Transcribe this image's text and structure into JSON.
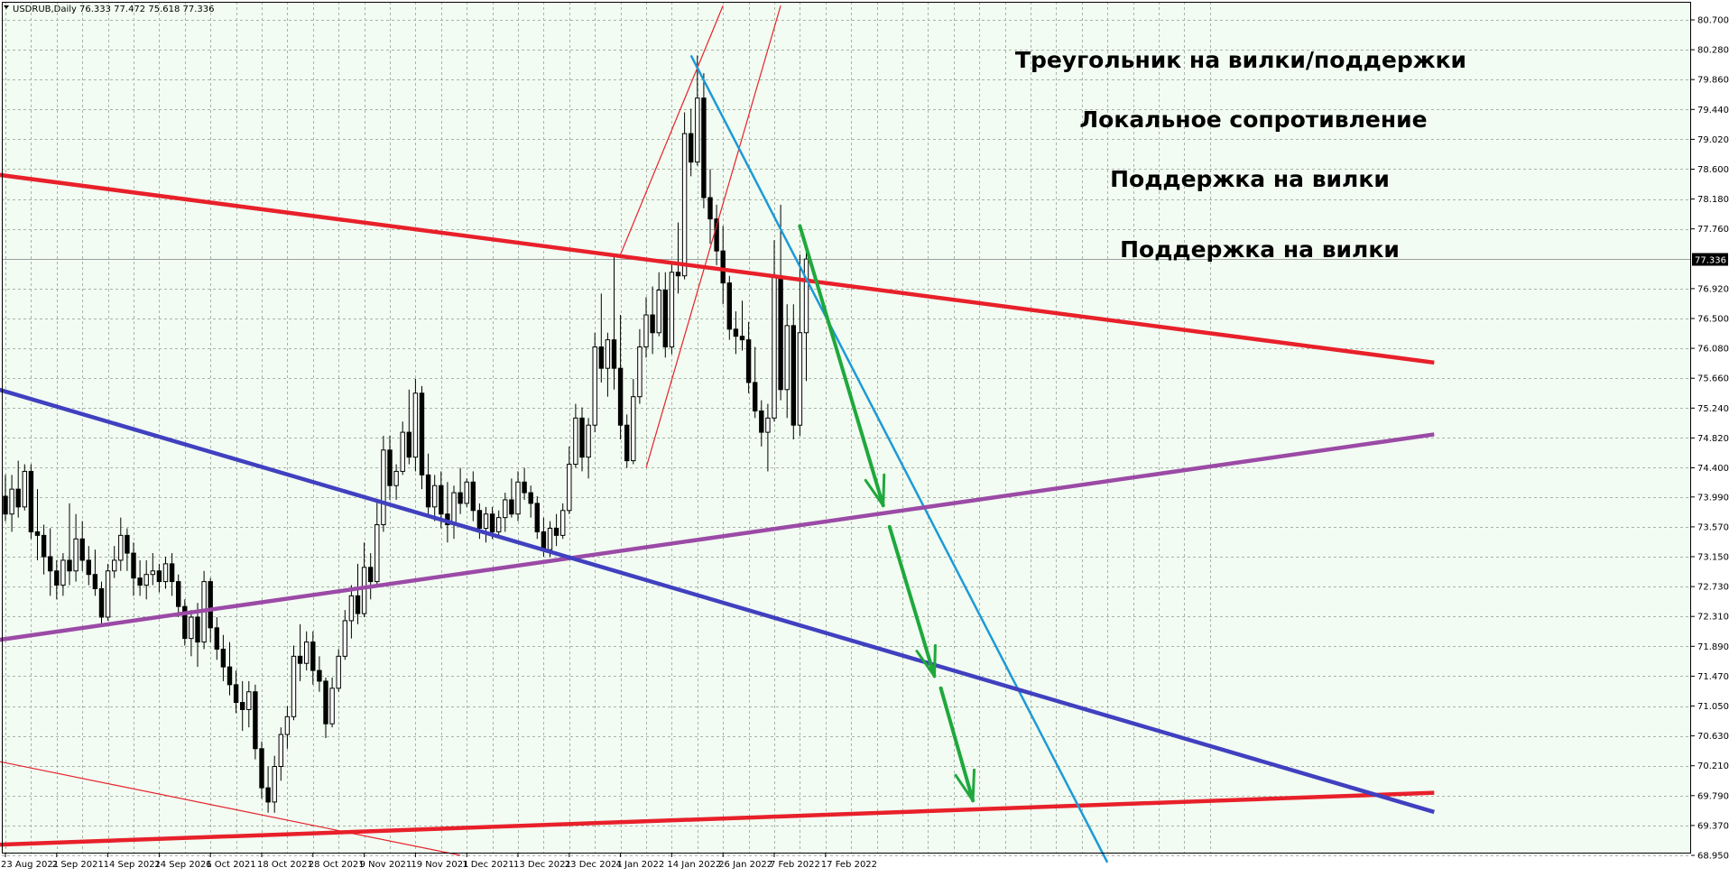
{
  "header": {
    "symbol_label": "USDRUB,Daily",
    "ohlc_text": "76.333 77.472 75.618 77.336"
  },
  "colors": {
    "background": "#f2fcf2",
    "grid": "#a8b4a8",
    "candle_up": "#ffffff",
    "candle_down": "#000000",
    "candle_outline": "#000000",
    "red": "#e8202a",
    "light_blue": "#1c9ad6",
    "purple": "#9b4aa6",
    "blue": "#4040c0",
    "green": "#1fa83c",
    "current_price_label_bg": "#000000",
    "current_price_label_text": "#ffffff"
  },
  "annotations": [
    {
      "text": "Треугольник на вилки/поддержки",
      "color": "#e8202a"
    },
    {
      "text": "Локальное сопротивление",
      "color": "#1c9ad6"
    },
    {
      "text": "Поддержка на вилки",
      "color": "#9b4aa6"
    },
    {
      "text": "Поддержка на вилки",
      "color": "#4040c0"
    }
  ],
  "chart_data": {
    "type": "candlestick",
    "symbol": "USDRUB",
    "timeframe": "Daily",
    "y_ticks": [
      80.7,
      80.28,
      79.86,
      79.44,
      79.02,
      78.6,
      78.18,
      77.76,
      76.92,
      76.5,
      76.08,
      75.66,
      75.24,
      74.82,
      74.4,
      73.99,
      73.57,
      73.15,
      72.73,
      72.31,
      71.89,
      71.47,
      71.05,
      70.63,
      70.21,
      69.79,
      69.37,
      68.95
    ],
    "current_price": 77.336,
    "x_tick_labels": [
      {
        "label": "23 Aug 2021",
        "bar": 0
      },
      {
        "label": "2 Sep 2021",
        "bar": 8
      },
      {
        "label": "14 Sep 2021",
        "bar": 16
      },
      {
        "label": "24 Sep 2021",
        "bar": 24
      },
      {
        "label": "6 Oct 2021",
        "bar": 32
      },
      {
        "label": "18 Oct 2021",
        "bar": 40
      },
      {
        "label": "28 Oct 2021",
        "bar": 48
      },
      {
        "label": "9 Nov 2021",
        "bar": 56
      },
      {
        "label": "19 Nov 2021",
        "bar": 64
      },
      {
        "label": "1 Dec 2021",
        "bar": 72
      },
      {
        "label": "13 Dec 2021",
        "bar": 80
      },
      {
        "label": "23 Dec 2021",
        "bar": 88
      },
      {
        "label": "4 Jan 2022",
        "bar": 96
      },
      {
        "label": "14 Jan 2022",
        "bar": 104
      },
      {
        "label": "26 Jan 2022",
        "bar": 112
      },
      {
        "label": "7 Feb 2022",
        "bar": 120
      },
      {
        "label": "17 Feb 2022",
        "bar": 128
      }
    ],
    "candles": [
      [
        74.0,
        74.3,
        73.65,
        73.75
      ],
      [
        73.75,
        74.3,
        73.5,
        74.1
      ],
      [
        74.1,
        74.5,
        73.7,
        73.85
      ],
      [
        73.85,
        74.45,
        73.8,
        74.35
      ],
      [
        74.35,
        74.45,
        73.4,
        73.5
      ],
      [
        73.5,
        74.1,
        73.1,
        73.45
      ],
      [
        73.45,
        73.6,
        72.9,
        73.15
      ],
      [
        73.15,
        73.55,
        72.6,
        72.95
      ],
      [
        72.95,
        73.1,
        72.55,
        72.75
      ],
      [
        72.75,
        73.2,
        72.6,
        73.1
      ],
      [
        73.1,
        73.9,
        72.75,
        72.95
      ],
      [
        72.95,
        73.75,
        72.8,
        73.4
      ],
      [
        73.4,
        73.65,
        72.95,
        73.1
      ],
      [
        73.1,
        73.3,
        72.75,
        72.9
      ],
      [
        72.9,
        73.25,
        72.6,
        72.7
      ],
      [
        72.7,
        72.8,
        72.2,
        72.3
      ],
      [
        72.3,
        73.05,
        72.25,
        72.95
      ],
      [
        72.95,
        73.3,
        72.85,
        73.1
      ],
      [
        73.1,
        73.7,
        72.95,
        73.45
      ],
      [
        73.45,
        73.55,
        72.95,
        73.2
      ],
      [
        73.2,
        73.35,
        72.6,
        72.85
      ],
      [
        72.85,
        73.1,
        72.6,
        72.75
      ],
      [
        72.75,
        73.1,
        72.55,
        72.9
      ],
      [
        72.9,
        73.2,
        72.75,
        72.95
      ],
      [
        72.95,
        73.05,
        72.65,
        72.8
      ],
      [
        72.8,
        73.15,
        72.7,
        73.05
      ],
      [
        73.05,
        73.2,
        72.6,
        72.8
      ],
      [
        72.8,
        72.9,
        72.3,
        72.45
      ],
      [
        72.45,
        72.55,
        71.9,
        72.0
      ],
      [
        72.0,
        72.4,
        71.75,
        72.3
      ],
      [
        72.3,
        72.5,
        71.6,
        71.95
      ],
      [
        71.95,
        72.95,
        71.85,
        72.8
      ],
      [
        72.8,
        72.85,
        71.95,
        72.15
      ],
      [
        72.15,
        72.3,
        71.7,
        71.85
      ],
      [
        71.85,
        72.05,
        71.4,
        71.6
      ],
      [
        71.6,
        71.95,
        71.2,
        71.35
      ],
      [
        71.35,
        71.55,
        70.95,
        71.1
      ],
      [
        71.1,
        71.4,
        70.7,
        71.0
      ],
      [
        71.0,
        71.4,
        70.75,
        71.25
      ],
      [
        71.25,
        71.35,
        70.3,
        70.45
      ],
      [
        70.45,
        70.55,
        69.75,
        69.9
      ],
      [
        69.9,
        70.2,
        69.55,
        69.7
      ],
      [
        69.7,
        70.35,
        69.55,
        70.2
      ],
      [
        70.2,
        70.75,
        70.0,
        70.65
      ],
      [
        70.65,
        71.05,
        70.45,
        70.9
      ],
      [
        70.9,
        71.9,
        70.85,
        71.75
      ],
      [
        71.75,
        72.2,
        71.4,
        71.65
      ],
      [
        71.65,
        72.1,
        71.55,
        71.95
      ],
      [
        71.95,
        72.1,
        71.35,
        71.55
      ],
      [
        71.55,
        71.75,
        71.25,
        71.4
      ],
      [
        71.4,
        71.45,
        70.6,
        70.8
      ],
      [
        70.8,
        71.45,
        70.75,
        71.3
      ],
      [
        71.3,
        71.85,
        71.25,
        71.75
      ],
      [
        71.75,
        72.4,
        71.7,
        72.25
      ],
      [
        72.25,
        72.75,
        72.0,
        72.6
      ],
      [
        72.6,
        73.05,
        72.2,
        72.35
      ],
      [
        72.35,
        73.35,
        72.3,
        73.0
      ],
      [
        73.0,
        73.2,
        72.55,
        72.8
      ],
      [
        72.8,
        73.95,
        72.75,
        73.6
      ],
      [
        73.6,
        74.85,
        73.5,
        74.65
      ],
      [
        74.65,
        74.85,
        73.95,
        74.15
      ],
      [
        74.15,
        74.45,
        73.95,
        74.35
      ],
      [
        74.35,
        75.05,
        74.3,
        74.9
      ],
      [
        74.9,
        75.5,
        74.45,
        74.55
      ],
      [
        74.55,
        75.65,
        74.35,
        75.45
      ],
      [
        75.45,
        75.55,
        74.1,
        74.3
      ],
      [
        74.3,
        74.6,
        73.75,
        73.85
      ],
      [
        73.85,
        74.3,
        73.65,
        74.15
      ],
      [
        74.15,
        74.35,
        73.55,
        73.75
      ],
      [
        73.75,
        74.2,
        73.35,
        73.6
      ],
      [
        73.6,
        74.15,
        73.4,
        74.05
      ],
      [
        74.05,
        74.4,
        73.75,
        73.9
      ],
      [
        73.9,
        74.25,
        73.85,
        74.2
      ],
      [
        74.2,
        74.35,
        73.65,
        73.8
      ],
      [
        73.8,
        73.9,
        73.4,
        73.55
      ],
      [
        73.55,
        73.85,
        73.35,
        73.75
      ],
      [
        73.75,
        73.85,
        73.4,
        73.5
      ],
      [
        73.5,
        73.8,
        73.45,
        73.7
      ],
      [
        73.7,
        74.05,
        73.5,
        73.95
      ],
      [
        73.95,
        74.25,
        73.7,
        73.75
      ],
      [
        73.75,
        74.35,
        73.65,
        74.2
      ],
      [
        74.2,
        74.4,
        73.95,
        74.05
      ],
      [
        74.05,
        74.15,
        73.7,
        73.9
      ],
      [
        73.9,
        74.0,
        73.4,
        73.5
      ],
      [
        73.5,
        73.7,
        73.15,
        73.25
      ],
      [
        73.25,
        73.65,
        73.15,
        73.55
      ],
      [
        73.55,
        73.75,
        73.3,
        73.45
      ],
      [
        73.45,
        73.9,
        73.4,
        73.8
      ],
      [
        73.8,
        74.7,
        73.75,
        74.45
      ],
      [
        74.45,
        75.3,
        74.4,
        75.1
      ],
      [
        75.1,
        75.25,
        74.35,
        74.55
      ],
      [
        74.55,
        75.1,
        74.25,
        75.0
      ],
      [
        75.0,
        76.3,
        74.9,
        76.1
      ],
      [
        76.1,
        76.85,
        75.6,
        75.8
      ],
      [
        75.8,
        76.3,
        75.4,
        76.2
      ],
      [
        76.2,
        77.4,
        75.5,
        75.8
      ],
      [
        75.8,
        76.55,
        74.8,
        75.0
      ],
      [
        75.0,
        75.15,
        74.4,
        74.5
      ],
      [
        74.5,
        75.65,
        74.45,
        75.4
      ],
      [
        75.4,
        76.35,
        75.3,
        76.1
      ],
      [
        76.1,
        76.8,
        75.95,
        76.55
      ],
      [
        76.55,
        76.95,
        76.0,
        76.3
      ],
      [
        76.3,
        77.15,
        76.25,
        76.9
      ],
      [
        76.9,
        77.15,
        75.95,
        76.1
      ],
      [
        76.1,
        77.3,
        76.0,
        77.15
      ],
      [
        77.15,
        77.85,
        76.85,
        77.1
      ],
      [
        77.1,
        79.4,
        77.05,
        79.1
      ],
      [
        79.1,
        79.45,
        78.5,
        78.7
      ],
      [
        78.7,
        80.2,
        78.65,
        79.6
      ],
      [
        79.6,
        79.95,
        78.05,
        78.2
      ],
      [
        78.2,
        78.6,
        77.55,
        77.9
      ],
      [
        77.9,
        78.1,
        77.25,
        77.45
      ],
      [
        77.45,
        77.8,
        76.7,
        77.0
      ],
      [
        77.0,
        77.1,
        76.2,
        76.35
      ],
      [
        76.35,
        76.6,
        76.0,
        76.25
      ],
      [
        76.25,
        76.75,
        76.05,
        76.2
      ],
      [
        76.2,
        76.45,
        75.45,
        75.6
      ],
      [
        75.6,
        76.1,
        75.1,
        75.2
      ],
      [
        75.2,
        75.35,
        74.7,
        74.9
      ],
      [
        74.9,
        75.3,
        74.35,
        75.1
      ],
      [
        75.1,
        77.6,
        75.05,
        77.1
      ],
      [
        77.1,
        78.1,
        75.35,
        75.5
      ],
      [
        75.5,
        76.7,
        75.1,
        76.4
      ],
      [
        76.4,
        76.7,
        74.8,
        75.0
      ],
      [
        75.0,
        77.4,
        74.85,
        76.3
      ],
      [
        76.3,
        77.47,
        75.62,
        77.336
      ]
    ],
    "trendlines": [
      {
        "name": "red-upper-line",
        "color": "red",
        "width": 4.5,
        "p1": {
          "bar": -1,
          "price": 78.52
        },
        "p2": {
          "bar": 223,
          "price": 75.88
        }
      },
      {
        "name": "red-lower-line",
        "color": "red",
        "width": 4.5,
        "p1": {
          "bar": -1,
          "price": 69.1
        },
        "p2": {
          "bar": 223,
          "price": 69.83
        }
      },
      {
        "name": "red-pitchfork-thin-lower",
        "color": "red",
        "width": 1.2,
        "p1": {
          "bar": -1,
          "price": 70.27
        },
        "p2": {
          "bar": 71,
          "price": 68.95
        }
      },
      {
        "name": "red-pitchfork-thin-left",
        "color": "red",
        "width": 1.2,
        "p1": {
          "bar": 96,
          "price": 77.4
        },
        "p2": {
          "bar": 112,
          "price": 80.9
        }
      },
      {
        "name": "red-pitchfork-thin-right",
        "color": "red",
        "width": 1.2,
        "p1": {
          "bar": 100,
          "price": 74.4
        },
        "p2": {
          "bar": 121,
          "price": 80.9
        }
      },
      {
        "name": "light-blue-resistance-line",
        "color": "light_blue",
        "width": 2.5,
        "p1": {
          "bar": 107,
          "price": 80.2
        },
        "p2": {
          "bar": 172,
          "price": 68.85
        }
      },
      {
        "name": "purple-support-line",
        "color": "purple",
        "width": 4.5,
        "p1": {
          "bar": -1,
          "price": 71.98
        },
        "p2": {
          "bar": 223,
          "price": 74.87
        }
      },
      {
        "name": "blue-support-line",
        "color": "blue",
        "width": 4.5,
        "p1": {
          "bar": -1,
          "price": 75.5
        },
        "p2": {
          "bar": 223,
          "price": 69.56
        }
      }
    ],
    "arrows": [
      {
        "name": "green-arrow-1",
        "p1": {
          "bar": 124,
          "price": 77.8
        },
        "p2": {
          "bar": 137,
          "price": 73.87
        }
      },
      {
        "name": "green-arrow-2",
        "p1": {
          "bar": 138,
          "price": 73.57
        },
        "p2": {
          "bar": 145,
          "price": 71.47
        }
      },
      {
        "name": "green-arrow-3",
        "p1": {
          "bar": 146,
          "price": 71.3
        },
        "p2": {
          "bar": 151,
          "price": 69.72
        }
      }
    ]
  }
}
